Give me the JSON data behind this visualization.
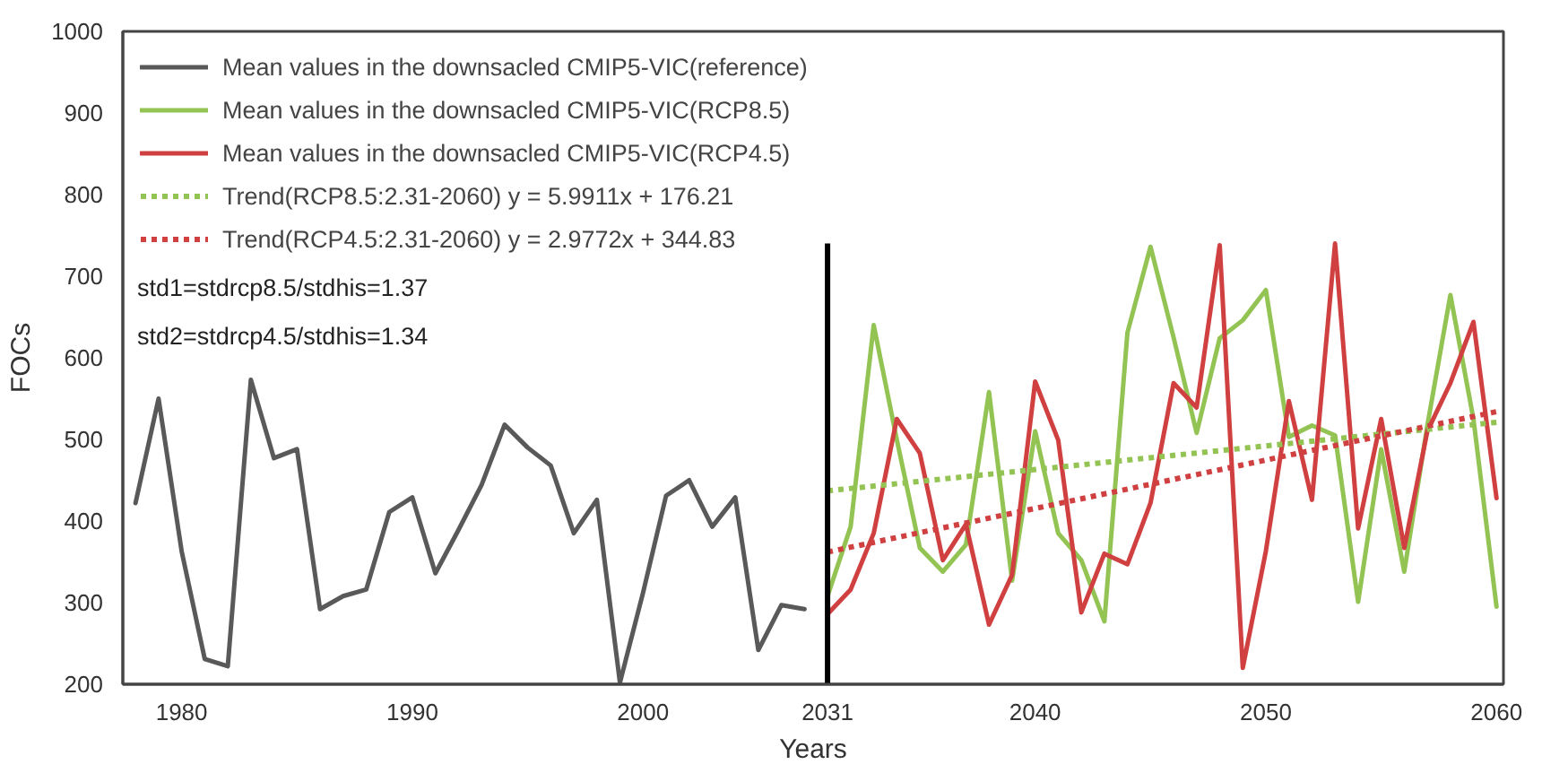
{
  "chart_data": {
    "type": "line",
    "xlabel": "Years",
    "ylabel": "FOCs",
    "categories": [
      null,
      null,
      "1980",
      null,
      null,
      null,
      null,
      null,
      null,
      null,
      null,
      null,
      "1990",
      null,
      null,
      null,
      null,
      null,
      null,
      null,
      null,
      null,
      "2000",
      null,
      null,
      null,
      null,
      null,
      null,
      null,
      "2031",
      null,
      null,
      null,
      null,
      null,
      null,
      null,
      null,
      "2040",
      null,
      null,
      null,
      null,
      null,
      null,
      null,
      null,
      null,
      "2050",
      null,
      null,
      null,
      null,
      null,
      null,
      null,
      null,
      null,
      "2060"
    ],
    "ylim": [
      200,
      1000
    ],
    "yticks": [
      200,
      300,
      400,
      500,
      600,
      700,
      800,
      900,
      1000
    ],
    "grid": false,
    "legend": "top left",
    "series": [
      {
        "name": "Mean values in the downsacled CMIP5-VIC(reference)",
        "color": "#595959",
        "values": [
          422,
          550,
          363,
          231,
          222,
          573,
          477,
          488,
          292,
          308,
          316,
          411,
          429,
          336,
          389,
          444,
          518,
          490,
          468,
          385,
          426,
          202,
          312,
          431,
          450,
          393,
          429,
          242,
          297,
          292,
          null,
          null,
          null,
          null,
          null,
          null,
          null,
          null,
          null,
          null,
          null,
          null,
          null,
          null,
          null,
          null,
          null,
          null,
          null,
          null,
          null,
          null,
          null,
          null,
          null,
          null,
          null,
          null,
          null,
          null
        ]
      },
      {
        "name": "Mean values in the downsacled CMIP5-VIC(RCP8.5)",
        "color": "#92c353",
        "values": [
          null,
          null,
          null,
          null,
          null,
          null,
          null,
          null,
          null,
          null,
          null,
          null,
          null,
          null,
          null,
          null,
          null,
          null,
          null,
          null,
          null,
          null,
          null,
          null,
          null,
          null,
          null,
          null,
          null,
          null,
          308,
          393,
          640,
          500,
          367,
          338,
          371,
          558,
          327,
          510,
          385,
          352,
          277,
          631,
          736,
          625,
          508,
          624,
          646,
          683,
          503,
          517,
          505,
          301,
          488,
          338,
          517,
          677,
          525,
          295
        ]
      },
      {
        "name": "Mean values in the downsacled CMIP5-VIC(RCP4.5)",
        "color": "#d04040",
        "values": [
          null,
          null,
          null,
          null,
          null,
          null,
          null,
          null,
          null,
          null,
          null,
          null,
          null,
          null,
          null,
          null,
          null,
          null,
          null,
          null,
          null,
          null,
          null,
          null,
          null,
          null,
          null,
          null,
          null,
          null,
          286,
          316,
          385,
          525,
          483,
          352,
          396,
          273,
          334,
          571,
          499,
          288,
          360,
          347,
          422,
          569,
          539,
          738,
          220,
          363,
          547,
          426,
          740,
          391,
          525,
          367,
          510,
          569,
          644,
          428
        ]
      },
      {
        "name": "Trend(RCP8.5:2.31-2060) y = 5.9911x + 176.21",
        "color": "#92c353",
        "line_style": "dotted",
        "values": [
          null,
          null,
          null,
          null,
          null,
          null,
          null,
          null,
          null,
          null,
          null,
          null,
          null,
          null,
          null,
          null,
          null,
          null,
          null,
          null,
          null,
          null,
          null,
          null,
          null,
          null,
          null,
          null,
          null,
          null,
          437,
          null,
          null,
          null,
          null,
          null,
          null,
          null,
          null,
          null,
          null,
          null,
          null,
          null,
          null,
          null,
          null,
          null,
          null,
          null,
          null,
          null,
          null,
          null,
          null,
          null,
          null,
          null,
          null,
          521
        ]
      },
      {
        "name": "Trend(RCP4.5:2.31-2060) y = 2.9772x + 344.83",
        "color": "#d04040",
        "line_style": "dotted",
        "values": [
          null,
          null,
          null,
          null,
          null,
          null,
          null,
          null,
          null,
          null,
          null,
          null,
          null,
          null,
          null,
          null,
          null,
          null,
          null,
          null,
          null,
          null,
          null,
          null,
          null,
          null,
          null,
          null,
          null,
          null,
          362,
          null,
          null,
          null,
          null,
          null,
          null,
          null,
          null,
          null,
          null,
          null,
          null,
          null,
          null,
          null,
          null,
          null,
          null,
          null,
          null,
          null,
          null,
          null,
          null,
          null,
          null,
          null,
          null,
          534
        ]
      }
    ],
    "ref_lines": [
      {
        "axis": "x",
        "value": "2031",
        "color": "#000000"
      }
    ],
    "annotations": [
      "std1=stdrcp8.5/stdhis=1.37",
      "std2=stdrcp4.5/stdhis=1.34"
    ]
  }
}
